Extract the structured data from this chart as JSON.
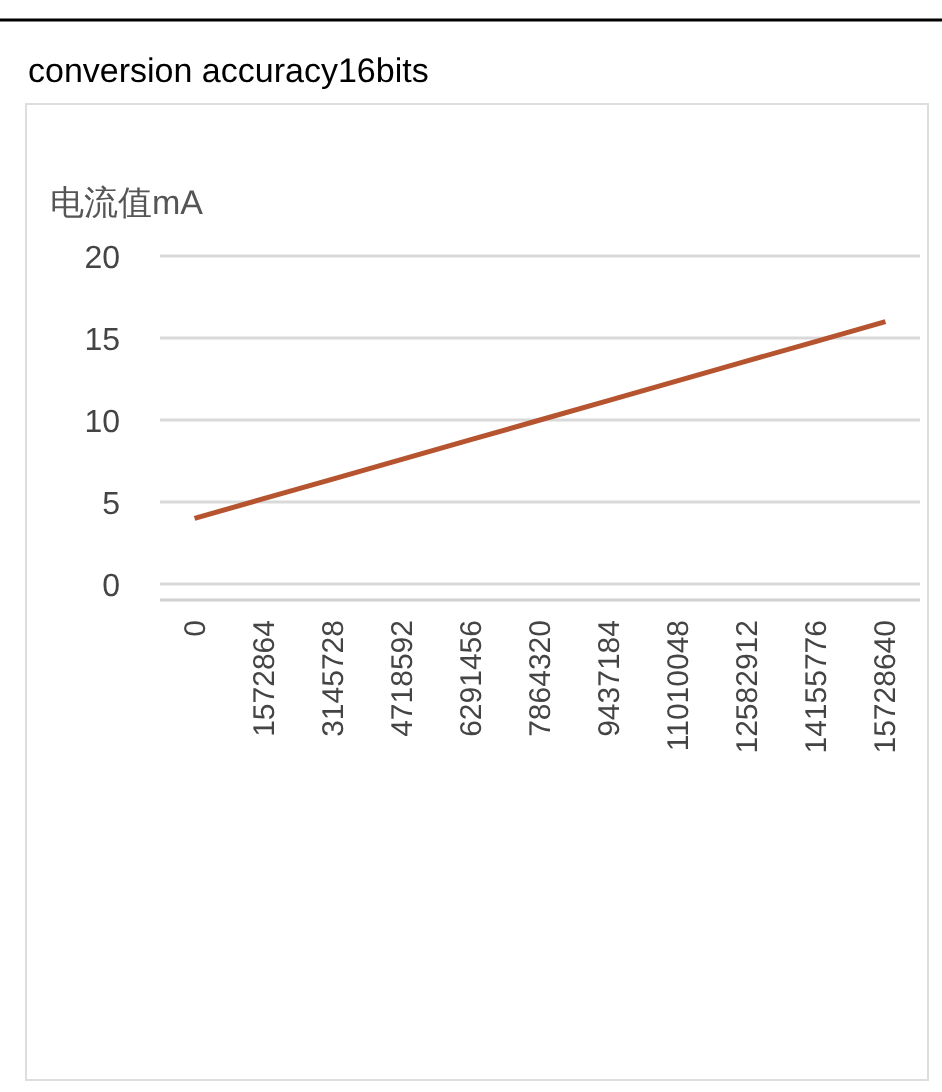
{
  "chart_data": {
    "type": "line",
    "title": "conversion accuracy16bits",
    "ylabel": "电流值mA",
    "categories": [
      "0",
      "1572864",
      "3145728",
      "4718592",
      "6291456",
      "7864320",
      "9437184",
      "11010048",
      "12582912",
      "14155776",
      "15728640"
    ],
    "series": [
      {
        "color": "#b5542f",
        "values": [
          4,
          5.2,
          6.4,
          7.6,
          8.8,
          10,
          11.2,
          12.4,
          13.6,
          14.8,
          16
        ]
      }
    ],
    "ylim": [
      0,
      20
    ],
    "yticks": [
      0,
      5,
      10,
      15,
      20
    ],
    "grid": "y",
    "marker": "none",
    "line_style": "solid"
  }
}
